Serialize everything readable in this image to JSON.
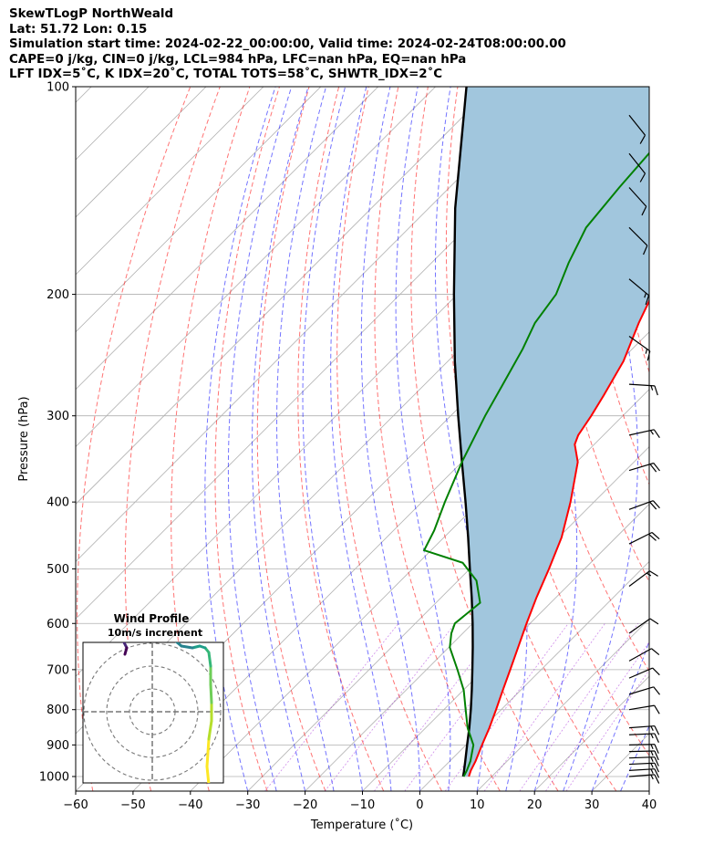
{
  "header": {
    "line1": "SkewTLogP NorthWeald",
    "line2": "Lat: 51.72   Lon: 0.15",
    "line3": "Simulation start time: 2024-02-22_00:00:00, Valid time: 2024-02-24T08:00:00.00",
    "line4": "CAPE=0 j/kg, CIN=0 j/kg, LCL=984 hPa, LFC=nan hPa, EQ=nan hPa",
    "line5": "LFT IDX=5˚C, K IDX=20˚C, TOTAL TOTS=58˚C, SHWTR_IDX=2˚C"
  },
  "chart_data": {
    "type": "line",
    "skew_t": true,
    "xlabel": "Temperature (˚C)",
    "ylabel": "Pressure (hPa)",
    "xlim": [
      -60,
      40
    ],
    "ylim": [
      1050,
      100
    ],
    "y_scale": "log",
    "x_ticks": [
      "−60",
      "−50",
      "−40",
      "−30",
      "−20",
      "−10",
      "0",
      "10",
      "20",
      "30",
      "40"
    ],
    "y_ticks": [
      "1000",
      "900",
      "800",
      "700",
      "600",
      "500",
      "400",
      "300",
      "200",
      "100"
    ],
    "grid": true,
    "series": [
      {
        "kind": "temperature",
        "color": "#ff0000",
        "points": [
          [
            1000,
            6
          ],
          [
            980,
            5.3
          ],
          [
            950,
            4.5
          ],
          [
            900,
            2.8
          ],
          [
            850,
            1.1
          ],
          [
            800,
            -0.9
          ],
          [
            750,
            -3.1
          ],
          [
            700,
            -5.4
          ],
          [
            650,
            -7.9
          ],
          [
            600,
            -10.6
          ],
          [
            550,
            -13.4
          ],
          [
            500,
            -16.2
          ],
          [
            450,
            -19.5
          ],
          [
            400,
            -24.1
          ],
          [
            350,
            -29.8
          ],
          [
            330,
            -33.4
          ],
          [
            320,
            -34.4
          ],
          [
            300,
            -35.5
          ],
          [
            280,
            -36.9
          ],
          [
            250,
            -39.4
          ],
          [
            220,
            -43.4
          ],
          [
            200,
            -46.0
          ],
          [
            180,
            -49.3
          ],
          [
            160,
            -52.6
          ],
          [
            140,
            -55.3
          ],
          [
            120,
            -57.8
          ],
          [
            100,
            -61.3
          ]
        ]
      },
      {
        "kind": "dewpoint",
        "color": "#008000",
        "points": [
          [
            1000,
            5.1
          ],
          [
            980,
            4.6
          ],
          [
            950,
            3.6
          ],
          [
            900,
            1.3
          ],
          [
            850,
            -2.7
          ],
          [
            800,
            -6.2
          ],
          [
            750,
            -9.9
          ],
          [
            700,
            -14.6
          ],
          [
            650,
            -19.8
          ],
          [
            620,
            -22.0
          ],
          [
            600,
            -23.1
          ],
          [
            560,
            -22.3
          ],
          [
            520,
            -26.8
          ],
          [
            490,
            -32.3
          ],
          [
            470,
            -41.2
          ],
          [
            440,
            -42.9
          ],
          [
            400,
            -46.0
          ],
          [
            350,
            -50.0
          ],
          [
            300,
            -54.0
          ],
          [
            270,
            -56.4
          ],
          [
            240,
            -59.1
          ],
          [
            220,
            -61.5
          ],
          [
            200,
            -62.8
          ],
          [
            180,
            -66.1
          ],
          [
            160,
            -69.2
          ],
          [
            140,
            -70.4
          ],
          [
            120,
            -71.4
          ],
          [
            100,
            -72.4
          ]
        ]
      },
      {
        "kind": "parcel",
        "color": "#000000",
        "points": [
          [
            1000,
            5.0
          ],
          [
            984,
            4.3
          ],
          [
            950,
            2.7
          ],
          [
            900,
            0.2
          ],
          [
            850,
            -2.4
          ],
          [
            800,
            -5.3
          ],
          [
            750,
            -8.5
          ],
          [
            700,
            -12.0
          ],
          [
            650,
            -15.8
          ],
          [
            600,
            -20.0
          ],
          [
            550,
            -24.7
          ],
          [
            500,
            -30.0
          ],
          [
            450,
            -35.8
          ],
          [
            400,
            -42.4
          ],
          [
            350,
            -50.0
          ],
          [
            300,
            -58.7
          ],
          [
            250,
            -68.8
          ],
          [
            200,
            -80.6
          ],
          [
            150,
            -95.4
          ],
          [
            100,
            -114.6
          ]
        ]
      }
    ],
    "wind_barbs": [
      {
        "p": 1000,
        "u": 8,
        "v": 0.6
      },
      {
        "p": 980,
        "u": 8.4,
        "v": 0.5
      },
      {
        "p": 960,
        "u": 8.6,
        "v": 0.4
      },
      {
        "p": 940,
        "u": 8.8,
        "v": 0.3
      },
      {
        "p": 920,
        "u": 9,
        "v": 0.2
      },
      {
        "p": 900,
        "u": 9,
        "v": 0.2
      },
      {
        "p": 870,
        "u": 8.6,
        "v": 0.4
      },
      {
        "p": 850,
        "u": 8.2,
        "v": 0.6
      },
      {
        "p": 800,
        "u": 7.2,
        "v": 1.2
      },
      {
        "p": 760,
        "u": 6.3,
        "v": 1.9
      },
      {
        "p": 720,
        "u": 5.8,
        "v": 2.5
      },
      {
        "p": 680,
        "u": 5.4,
        "v": 3
      },
      {
        "p": 620,
        "u": 6,
        "v": 4.2
      },
      {
        "p": 530,
        "u": 8,
        "v": 6
      },
      {
        "p": 460,
        "u": 10,
        "v": 5
      },
      {
        "p": 410,
        "u": 11,
        "v": 4
      },
      {
        "p": 360,
        "u": 10,
        "v": 3
      },
      {
        "p": 320,
        "u": 9,
        "v": 2
      },
      {
        "p": 270,
        "u": 8,
        "v": -0.5
      },
      {
        "p": 230,
        "u": 7,
        "v": -5
      },
      {
        "p": 190,
        "u": 6,
        "v": -5
      },
      {
        "p": 160,
        "u": 5,
        "v": -5
      },
      {
        "p": 140,
        "u": 4.5,
        "v": -5
      },
      {
        "p": 125,
        "u": 4,
        "v": -5
      },
      {
        "p": 110,
        "u": 4,
        "v": -5
      }
    ],
    "inset": {
      "title": "Wind Profile",
      "subtitle": "10m/s increment",
      "ring_step": 10,
      "hodograph": [
        [
          6.5,
          -11
        ],
        [
          6.3,
          -9
        ],
        [
          6,
          -6
        ],
        [
          6.2,
          -3
        ],
        [
          6.5,
          -1
        ],
        [
          6.5,
          1
        ],
        [
          6.4,
          3
        ],
        [
          6.4,
          5
        ],
        [
          6.2,
          6.5
        ],
        [
          5.8,
          7
        ],
        [
          5.2,
          7.2
        ],
        [
          4.4,
          7
        ],
        [
          3.2,
          7.2
        ],
        [
          2,
          8.2
        ],
        [
          0.8,
          8.8
        ],
        [
          -0.2,
          9
        ],
        [
          -1.5,
          8.8
        ],
        [
          -2.8,
          8.6
        ],
        [
          -3.2,
          7.8
        ],
        [
          -2.8,
          7
        ],
        [
          -3.0,
          6.3
        ]
      ]
    },
    "colors": {
      "isotherm": "#b0b0b0",
      "dry_adiabat": "#ff0000",
      "moist_adiabat": "#0000ff",
      "mixing_ratio": "#9400d3",
      "cape_fill": "#a1c6dd"
    }
  }
}
